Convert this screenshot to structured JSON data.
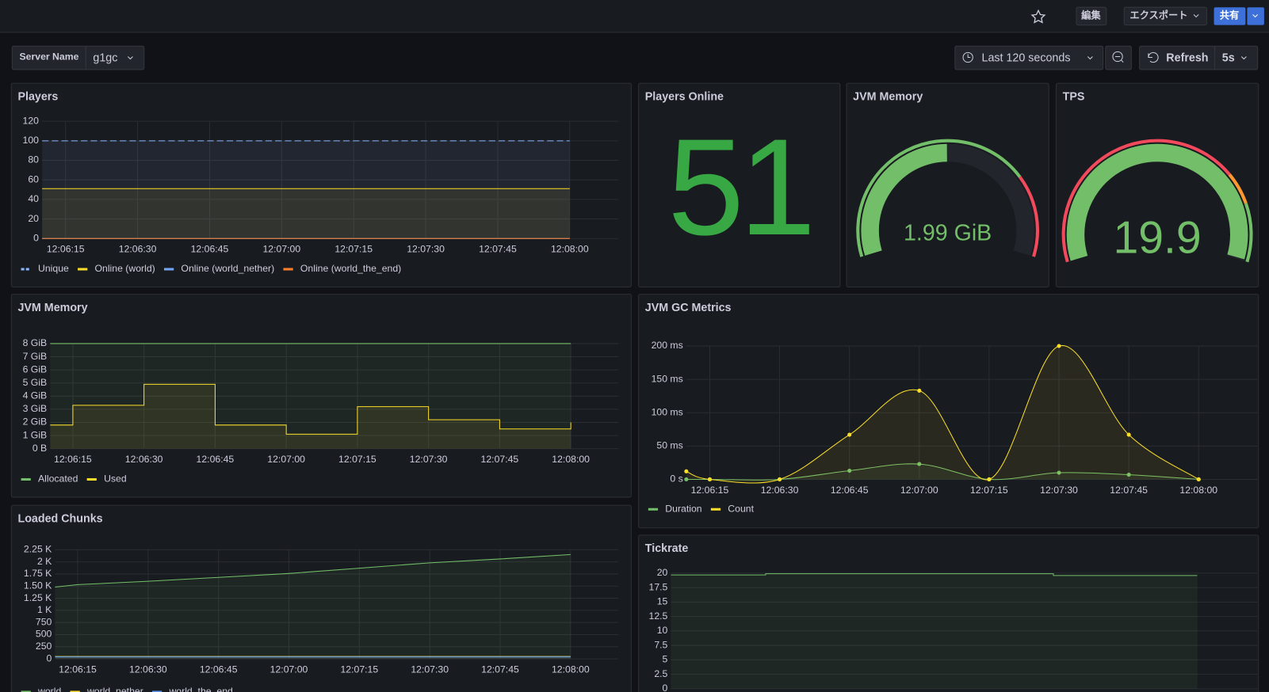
{
  "toolbar": {
    "edit": "編集",
    "export": "エクスポート",
    "share": "共有"
  },
  "variable": {
    "label": "Server Name",
    "value": "g1gc"
  },
  "time_picker": {
    "range": "Last 120 seconds",
    "refresh": "Refresh",
    "interval": "5s"
  },
  "panels": [
    {
      "type": "timeseries",
      "title": "Players",
      "interpolation": "linear",
      "categories": [
        null,
        "12:06:15",
        "12:06:30",
        "12:06:45",
        "12:07:00",
        "12:07:15",
        "12:07:30",
        "12:07:45",
        "12:08:00"
      ],
      "ylim": [
        0,
        120
      ],
      "yticks": [
        0,
        20,
        40,
        60,
        80,
        100,
        120
      ],
      "series": [
        {
          "name": "Unique",
          "color": "#8ab8ff",
          "dash": true,
          "values": [
            100,
            100,
            100,
            100,
            100,
            100,
            100,
            100,
            100
          ]
        },
        {
          "name": "Online (world)",
          "color": "#fade2a",
          "values": [
            51,
            51,
            51,
            51,
            51,
            51,
            51,
            51,
            51
          ]
        },
        {
          "name": "Online (world_nether)",
          "color": "#73a7f5",
          "values": [
            0,
            0,
            0,
            0,
            0,
            0,
            0,
            0,
            0
          ]
        },
        {
          "name": "Online (world_the_end)",
          "color": "#ff7f2a",
          "values": [
            0,
            0,
            0,
            0,
            0,
            0,
            0,
            0,
            0
          ]
        }
      ]
    },
    {
      "type": "timeseries",
      "title": "JVM Memory",
      "interpolation": "step",
      "categories": [
        null,
        "12:06:15",
        "12:06:30",
        "12:06:45",
        "12:07:00",
        "12:07:15",
        "12:07:30",
        "12:07:45",
        "12:08:00"
      ],
      "ylim": [
        0,
        8
      ],
      "yticks": [
        {
          "value": 0,
          "label": "0 B"
        },
        {
          "value": 1,
          "label": "1 GiB"
        },
        {
          "value": 2,
          "label": "2 GiB"
        },
        {
          "value": 3,
          "label": "3 GiB"
        },
        {
          "value": 4,
          "label": "4 GiB"
        },
        {
          "value": 5,
          "label": "5 GiB"
        },
        {
          "value": 6,
          "label": "6 GiB"
        },
        {
          "value": 7,
          "label": "7 GiB"
        },
        {
          "value": 8,
          "label": "8 GiB"
        }
      ],
      "series": [
        {
          "name": "Allocated",
          "color": "#73bf69",
          "values": [
            8,
            8,
            8,
            8,
            8,
            8,
            8,
            8,
            8
          ]
        },
        {
          "name": "Used",
          "color": "#fade2a",
          "values": [
            1.8,
            3.3,
            4.9,
            1.8,
            1.1,
            3.2,
            2.2,
            1.5,
            2.0
          ]
        }
      ]
    },
    {
      "type": "timeseries",
      "title": "Loaded Chunks",
      "interpolation": "linear",
      "categories": [
        null,
        "12:06:15",
        "12:06:30",
        "12:06:45",
        "12:07:00",
        "12:07:15",
        "12:07:30",
        "12:07:45",
        "12:08:00"
      ],
      "ylim": [
        0,
        2250
      ],
      "yticks": [
        0,
        250,
        500,
        750,
        {
          "value": 1000,
          "label": "1 K"
        },
        {
          "value": 1250,
          "label": "1.25 K"
        },
        {
          "value": 1500,
          "label": "1.50 K"
        },
        {
          "value": 1750,
          "label": "1.75 K"
        },
        {
          "value": 2000,
          "label": "2 K"
        },
        {
          "value": 2250,
          "label": "2.25 K"
        }
      ],
      "series": [
        {
          "name": "world",
          "color": "#73bf69",
          "values": [
            1480,
            1530,
            1600,
            1680,
            1760,
            1870,
            1980,
            2060,
            2150
          ]
        },
        {
          "name": "world_nether",
          "color": "#fade2a",
          "values": [
            50,
            50,
            50,
            50,
            50,
            50,
            50,
            50,
            50
          ]
        },
        {
          "name": "world_the_end",
          "color": "#5794f2",
          "values": [
            40,
            40,
            40,
            40,
            40,
            40,
            40,
            40,
            40
          ]
        }
      ]
    },
    {
      "type": "stat",
      "title": "Players Online",
      "value": 51,
      "color": "#37a843"
    },
    {
      "type": "gauge",
      "title": "JVM Memory",
      "value": 1.99,
      "value_label": "1.99 GiB",
      "min": 0,
      "max": 4,
      "color": "#73bf69",
      "thresholds": [
        {
          "color": "#73bf69",
          "value": 0
        },
        {
          "color": "#f2495c",
          "value": 3
        }
      ]
    },
    {
      "type": "gauge",
      "title": "TPS",
      "value": 19.9,
      "min": 0,
      "max": 20,
      "color": "#73bf69",
      "thresholds": [
        {
          "color": "#f2495c",
          "value": 0
        },
        {
          "color": "#ff9830",
          "value": 14.7
        },
        {
          "color": "#73bf69",
          "value": 16.6
        }
      ]
    },
    {
      "type": "timeseries",
      "title": "JVM GC Metrics",
      "interpolation": "smooth",
      "points": true,
      "categories": [
        null,
        "12:06:15",
        "12:06:30",
        "12:06:45",
        "12:07:00",
        "12:07:15",
        "12:07:30",
        "12:07:45",
        "12:08:00"
      ],
      "ylim": [
        0,
        200
      ],
      "yticks": [
        {
          "value": 0,
          "label": "0 s"
        },
        {
          "value": 50,
          "label": "50 ms"
        },
        {
          "value": 100,
          "label": "100 ms"
        },
        {
          "value": 150,
          "label": "150 ms"
        },
        {
          "value": 200,
          "label": "200 ms"
        }
      ],
      "series": [
        {
          "name": "Duration",
          "color": "#73bf69",
          "values": [
            0,
            0,
            0,
            13,
            23,
            0,
            10,
            7,
            0
          ]
        },
        {
          "name": "Count",
          "color": "#fade2a",
          "values": [
            12,
            0,
            0,
            67,
            133,
            0,
            200,
            67,
            0
          ]
        }
      ]
    },
    {
      "type": "timeseries",
      "title": "Tickrate",
      "interpolation": "step",
      "ylim": [
        0,
        20
      ],
      "yticks": [
        0,
        2.5,
        5,
        7.5,
        10,
        12.5,
        15,
        17.5,
        20
      ],
      "series": [
        {
          "color": "#73bf69",
          "values": [
            19.7,
            19.9,
            19.9,
            19.9,
            19.9,
            19.6,
            19.6,
            19.6
          ]
        }
      ]
    }
  ]
}
